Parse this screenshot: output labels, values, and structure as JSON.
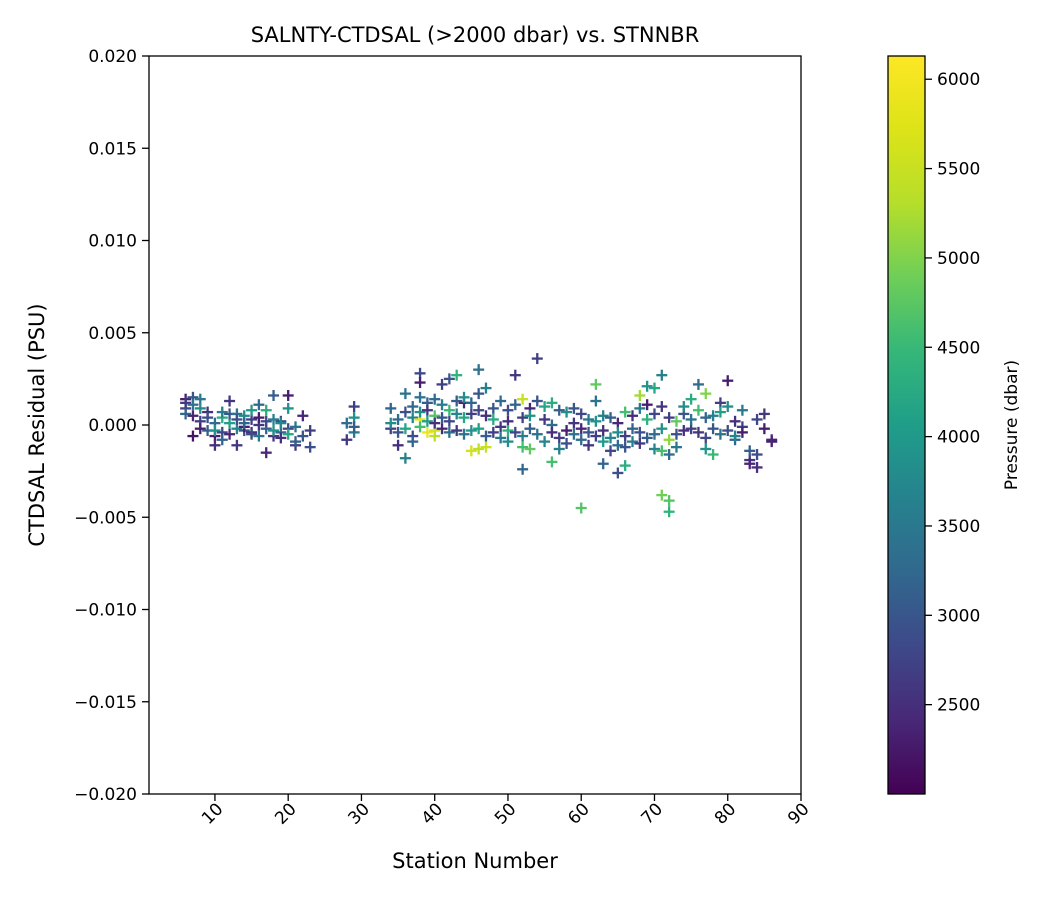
{
  "chart_data": {
    "type": "scatter",
    "title": "SALNTY-CTDSAL (>2000 dbar) vs. STNNBR",
    "xlabel": "Station Number",
    "ylabel": "CTDSAL Residual (PSU)",
    "xlim": [
      1,
      90
    ],
    "ylim": [
      -0.02,
      0.02
    ],
    "xticks": [
      10,
      20,
      30,
      40,
      50,
      60,
      70,
      80,
      90
    ],
    "yticks": [
      -0.02,
      -0.015,
      -0.01,
      -0.005,
      0.0,
      0.005,
      0.01,
      0.015,
      0.02
    ],
    "xtick_labels": [
      "10",
      "20",
      "30",
      "40",
      "50",
      "60",
      "70",
      "80",
      "90"
    ],
    "ytick_labels": [
      "−0.020",
      "−0.015",
      "−0.010",
      "−0.005",
      "0.000",
      "0.005",
      "0.010",
      "0.015",
      "0.020"
    ],
    "marker": "plus",
    "grid": false,
    "colorbar": {
      "label": "Pressure (dbar)",
      "range": [
        2000,
        6130
      ],
      "ticks": [
        2500,
        3000,
        3500,
        4000,
        4500,
        5000,
        5500,
        6000
      ],
      "tick_labels": [
        "2500",
        "3000",
        "3500",
        "4000",
        "4500",
        "5000",
        "5500",
        "6000"
      ],
      "colormap": "viridis"
    },
    "points": [
      [
        6,
        0.0014,
        2300
      ],
      [
        6,
        0.0009,
        2800
      ],
      [
        6,
        0.0006,
        3200
      ],
      [
        6,
        0.0012,
        2600
      ],
      [
        7,
        0.0015,
        3000
      ],
      [
        7,
        0.0005,
        2400
      ],
      [
        7,
        -0.0006,
        2200
      ],
      [
        7,
        0.0011,
        3400
      ],
      [
        8,
        0.0014,
        3500
      ],
      [
        8,
        0.0002,
        2700
      ],
      [
        8,
        -0.0002,
        2300
      ],
      [
        8,
        0.0009,
        3800
      ],
      [
        9,
        0.0007,
        2500
      ],
      [
        9,
        -0.0003,
        3100
      ],
      [
        9,
        0.0004,
        2900
      ],
      [
        10,
        -0.0006,
        2300
      ],
      [
        10,
        0.0001,
        3300
      ],
      [
        10,
        -0.0011,
        2500
      ],
      [
        10,
        -0.0003,
        3900
      ],
      [
        11,
        0.0004,
        4300
      ],
      [
        11,
        -0.0004,
        2800
      ],
      [
        11,
        -0.0008,
        3200
      ],
      [
        11,
        0.0007,
        3600
      ],
      [
        12,
        0.0013,
        2600
      ],
      [
        12,
        0.0001,
        4100
      ],
      [
        12,
        -0.0005,
        2400
      ],
      [
        12,
        0.0006,
        3000
      ],
      [
        13,
        -0.0011,
        2600
      ],
      [
        13,
        0.0006,
        3400
      ],
      [
        13,
        -0.0002,
        3700
      ],
      [
        13,
        0.0003,
        2900
      ],
      [
        14,
        0.0005,
        3800
      ],
      [
        14,
        -0.0003,
        3000
      ],
      [
        14,
        -0.0001,
        2300
      ],
      [
        14,
        0.0001,
        3200
      ],
      [
        15,
        0.0003,
        2700
      ],
      [
        15,
        -0.0004,
        2500
      ],
      [
        15,
        0.0008,
        4000
      ],
      [
        15,
        -0.0005,
        2900
      ],
      [
        16,
        0.0011,
        3300
      ],
      [
        16,
        0.0,
        2600
      ],
      [
        16,
        -0.0006,
        3500
      ],
      [
        16,
        0.0004,
        2300
      ],
      [
        17,
        -0.0015,
        2400
      ],
      [
        17,
        0.0008,
        4300
      ],
      [
        17,
        -0.0002,
        3100
      ],
      [
        17,
        0.0002,
        2800
      ],
      [
        18,
        0.0016,
        3100
      ],
      [
        18,
        -0.0006,
        2600
      ],
      [
        18,
        0.0003,
        3600
      ],
      [
        18,
        -0.0003,
        3900
      ],
      [
        19,
        0.0002,
        2900
      ],
      [
        19,
        -0.0004,
        3300
      ],
      [
        19,
        -0.0007,
        2500
      ],
      [
        19,
        0.0001,
        3700
      ],
      [
        20,
        0.0016,
        2300
      ],
      [
        20,
        0.0009,
        3900
      ],
      [
        20,
        -0.0002,
        2800
      ],
      [
        20,
        -0.0005,
        4200
      ],
      [
        21,
        -0.0011,
        2600
      ],
      [
        21,
        -0.0001,
        3400
      ],
      [
        21,
        -0.0009,
        3100
      ],
      [
        22,
        0.0005,
        2400
      ],
      [
        22,
        -0.0006,
        3000
      ],
      [
        23,
        -0.0003,
        2700
      ],
      [
        23,
        -0.0012,
        2900
      ],
      [
        28,
        -0.0008,
        2600
      ],
      [
        28,
        0.0001,
        3300
      ],
      [
        29,
        0.001,
        2700
      ],
      [
        29,
        -0.0004,
        3500
      ],
      [
        29,
        0.0004,
        3900
      ],
      [
        29,
        -0.0001,
        3100
      ],
      [
        34,
        0.0009,
        3200
      ],
      [
        34,
        -0.0002,
        2700
      ],
      [
        34,
        0.0001,
        3800
      ],
      [
        35,
        -0.0011,
        2500
      ],
      [
        35,
        0.0003,
        3300
      ],
      [
        35,
        -0.0004,
        3000
      ],
      [
        36,
        0.0017,
        3400
      ],
      [
        36,
        -0.0018,
        3600
      ],
      [
        36,
        0.0007,
        2900
      ],
      [
        36,
        -0.0002,
        4200
      ],
      [
        37,
        0.001,
        3300
      ],
      [
        37,
        -0.0006,
        2800
      ],
      [
        37,
        -0.0009,
        3200
      ],
      [
        37,
        0.0004,
        3700
      ],
      [
        38,
        0.0028,
        2800
      ],
      [
        38,
        0.0023,
        2300
      ],
      [
        38,
        0.0015,
        3400
      ],
      [
        38,
        0.0003,
        5800
      ],
      [
        38,
        -0.0001,
        4600
      ],
      [
        38,
        0.0007,
        3900
      ],
      [
        39,
        0.0012,
        3100
      ],
      [
        39,
        -0.0004,
        5900
      ],
      [
        39,
        0.0002,
        4100
      ],
      [
        39,
        0.0008,
        2600
      ],
      [
        40,
        0.0014,
        3300
      ],
      [
        40,
        -0.0003,
        5600
      ],
      [
        40,
        0.0005,
        4700
      ],
      [
        40,
        0.0001,
        2500
      ],
      [
        40,
        -0.0006,
        5400
      ],
      [
        41,
        0.0022,
        2700
      ],
      [
        41,
        0.0011,
        3600
      ],
      [
        41,
        0.0004,
        3000
      ],
      [
        41,
        -0.0002,
        2400
      ],
      [
        42,
        0.0025,
        3000
      ],
      [
        42,
        0.0008,
        4500
      ],
      [
        42,
        0.0002,
        2800
      ],
      [
        42,
        -0.0004,
        3300
      ],
      [
        43,
        0.0027,
        4400
      ],
      [
        43,
        0.0013,
        3100
      ],
      [
        43,
        -0.0003,
        2600
      ],
      [
        43,
        0.0006,
        3700
      ],
      [
        44,
        0.0012,
        2400
      ],
      [
        44,
        -0.0005,
        3400
      ],
      [
        44,
        0.0004,
        4200
      ],
      [
        44,
        0.0015,
        3800
      ],
      [
        45,
        -0.0014,
        5600
      ],
      [
        45,
        0.0012,
        3200
      ],
      [
        45,
        0.0006,
        2700
      ],
      [
        45,
        -0.0003,
        3900
      ],
      [
        46,
        0.003,
        3400
      ],
      [
        46,
        -0.0013,
        5400
      ],
      [
        46,
        0.0008,
        2800
      ],
      [
        46,
        -0.0002,
        4100
      ],
      [
        46,
        0.0017,
        3000
      ],
      [
        47,
        0.002,
        3600
      ],
      [
        47,
        -0.0012,
        5500
      ],
      [
        47,
        0.0005,
        2500
      ],
      [
        47,
        -0.0006,
        3100
      ],
      [
        48,
        0.0009,
        3000
      ],
      [
        48,
        -0.0004,
        2700
      ],
      [
        48,
        0.0003,
        4300
      ],
      [
        49,
        0.0013,
        3300
      ],
      [
        49,
        -0.0001,
        2600
      ],
      [
        49,
        -0.0007,
        3500
      ],
      [
        50,
        0.0008,
        2900
      ],
      [
        50,
        -0.0009,
        3800
      ],
      [
        50,
        0.0002,
        2500
      ],
      [
        50,
        -0.0003,
        4400
      ],
      [
        51,
        0.0027,
        2600
      ],
      [
        51,
        0.0011,
        3200
      ],
      [
        51,
        -0.0004,
        2800
      ],
      [
        52,
        -0.0024,
        3200
      ],
      [
        52,
        0.0014,
        5500
      ],
      [
        52,
        -0.0012,
        4600
      ],
      [
        52,
        0.0004,
        2700
      ],
      [
        52,
        -0.0006,
        3600
      ],
      [
        53,
        0.0009,
        2400
      ],
      [
        53,
        -0.0013,
        4800
      ],
      [
        53,
        -0.0002,
        3100
      ],
      [
        53,
        0.0005,
        3900
      ],
      [
        54,
        0.0036,
        2700
      ],
      [
        54,
        0.0013,
        3000
      ],
      [
        54,
        -0.0005,
        3400
      ],
      [
        55,
        0.0003,
        2600
      ],
      [
        55,
        -0.0009,
        3700
      ],
      [
        55,
        0.001,
        4200
      ],
      [
        56,
        0.0012,
        4300
      ],
      [
        56,
        -0.002,
        4600
      ],
      [
        56,
        0.0,
        3300
      ],
      [
        56,
        -0.0004,
        2500
      ],
      [
        57,
        0.0008,
        3100
      ],
      [
        57,
        -0.0007,
        2700
      ],
      [
        57,
        -0.0013,
        3600
      ],
      [
        58,
        -0.0003,
        2300
      ],
      [
        58,
        0.0007,
        3800
      ],
      [
        58,
        -0.001,
        2900
      ],
      [
        59,
        0.0009,
        3000
      ],
      [
        59,
        -0.0005,
        3400
      ],
      [
        59,
        0.0001,
        2600
      ],
      [
        60,
        -0.0045,
        4700
      ],
      [
        60,
        0.0006,
        2800
      ],
      [
        60,
        -0.0008,
        3300
      ],
      [
        60,
        -0.0002,
        2400
      ],
      [
        61,
        0.0003,
        3500
      ],
      [
        61,
        -0.0011,
        2600
      ],
      [
        61,
        -0.0004,
        3000
      ],
      [
        62,
        0.0022,
        4800
      ],
      [
        62,
        0.0013,
        3400
      ],
      [
        62,
        -0.0006,
        2700
      ],
      [
        62,
        0.0002,
        3900
      ],
      [
        63,
        -0.0021,
        3200
      ],
      [
        63,
        -0.0003,
        2500
      ],
      [
        63,
        0.0005,
        3600
      ],
      [
        63,
        -0.0009,
        4000
      ],
      [
        64,
        -0.0014,
        2800
      ],
      [
        64,
        0.0004,
        3100
      ],
      [
        64,
        -0.0007,
        3700
      ],
      [
        65,
        -0.0026,
        2900
      ],
      [
        65,
        -0.0011,
        3300
      ],
      [
        65,
        0.0001,
        2400
      ],
      [
        65,
        -0.0004,
        3800
      ],
      [
        66,
        -0.0022,
        4300
      ],
      [
        66,
        -0.0006,
        2700
      ],
      [
        66,
        0.0007,
        4600
      ],
      [
        66,
        -0.0012,
        3000
      ],
      [
        67,
        -0.0009,
        3600
      ],
      [
        67,
        0.0005,
        2500
      ],
      [
        67,
        -0.0002,
        3200
      ],
      [
        68,
        0.0016,
        5200
      ],
      [
        68,
        -0.0004,
        2900
      ],
      [
        68,
        0.0009,
        3500
      ],
      [
        68,
        -0.001,
        2600
      ],
      [
        69,
        0.0021,
        3900
      ],
      [
        69,
        0.0003,
        4400
      ],
      [
        69,
        -0.0007,
        3100
      ],
      [
        69,
        0.0011,
        2300
      ],
      [
        70,
        0.002,
        4200
      ],
      [
        70,
        -0.0013,
        3700
      ],
      [
        70,
        0.0006,
        2800
      ],
      [
        70,
        -0.0005,
        3300
      ],
      [
        71,
        0.0027,
        3600
      ],
      [
        71,
        -0.0038,
        4900
      ],
      [
        71,
        -0.0014,
        4600
      ],
      [
        71,
        0.001,
        2600
      ],
      [
        71,
        -0.0002,
        3900
      ],
      [
        72,
        -0.0041,
        4700
      ],
      [
        72,
        -0.0047,
        4400
      ],
      [
        72,
        -0.0016,
        3300
      ],
      [
        72,
        0.0004,
        2700
      ],
      [
        72,
        -0.0008,
        5100
      ],
      [
        73,
        -0.0012,
        3500
      ],
      [
        73,
        0.0002,
        4800
      ],
      [
        73,
        -0.0005,
        2900
      ],
      [
        74,
        0.0006,
        3000
      ],
      [
        74,
        -0.0003,
        2500
      ],
      [
        74,
        0.001,
        3800
      ],
      [
        75,
        0.0014,
        4300
      ],
      [
        75,
        -0.0002,
        2700
      ],
      [
        75,
        0.0003,
        3400
      ],
      [
        76,
        0.0022,
        3300
      ],
      [
        76,
        0.0008,
        4600
      ],
      [
        76,
        -0.0004,
        2600
      ],
      [
        77,
        -0.0013,
        3900
      ],
      [
        77,
        0.0017,
        5000
      ],
      [
        77,
        -0.0007,
        2800
      ],
      [
        77,
        0.0004,
        3200
      ],
      [
        78,
        0.0005,
        3600
      ],
      [
        78,
        -0.0016,
        4500
      ],
      [
        78,
        -0.0002,
        3000
      ],
      [
        79,
        0.0012,
        2700
      ],
      [
        79,
        -0.0005,
        3400
      ],
      [
        79,
        0.0007,
        4100
      ],
      [
        80,
        0.0024,
        2300
      ],
      [
        80,
        0.001,
        3800
      ],
      [
        80,
        -0.0003,
        2900
      ],
      [
        81,
        -0.0008,
        3200
      ],
      [
        81,
        0.0002,
        2500
      ],
      [
        81,
        -0.0006,
        3700
      ],
      [
        82,
        0.0008,
        3500
      ],
      [
        82,
        -0.0001,
        2700
      ],
      [
        82,
        -0.0004,
        2300
      ],
      [
        83,
        -0.0019,
        2600
      ],
      [
        83,
        -0.0021,
        2400
      ],
      [
        83,
        -0.0014,
        3100
      ],
      [
        84,
        -0.0023,
        2500
      ],
      [
        84,
        0.0003,
        2800
      ],
      [
        84,
        -0.0016,
        2900
      ],
      [
        85,
        0.0006,
        2600
      ],
      [
        85,
        -0.0002,
        2300
      ],
      [
        86,
        -0.0009,
        2300
      ],
      [
        86,
        -0.0008,
        2400
      ]
    ]
  }
}
